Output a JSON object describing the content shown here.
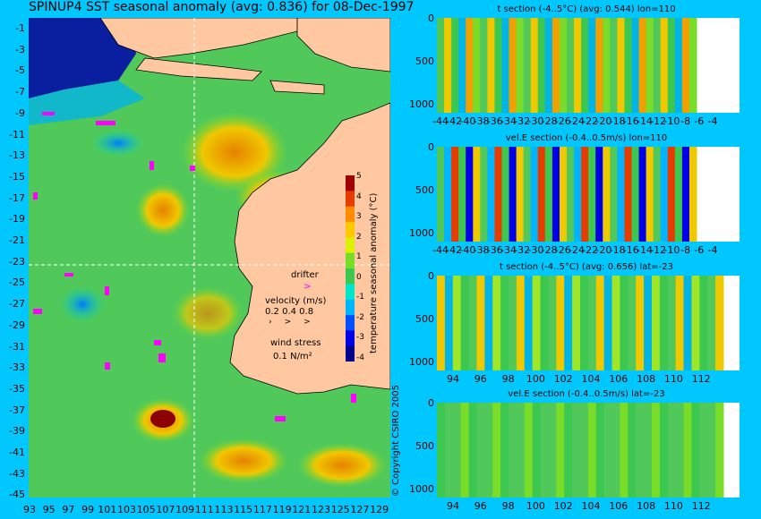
{
  "title": "SPINUP4 SST seasonal anomaly (avg: 0.836) for 08-Dec-1997",
  "map": {
    "y_ticks": [
      "-1",
      "-3",
      "-5",
      "-7",
      "-9",
      "-11",
      "-13",
      "-15",
      "-17",
      "-19",
      "-21",
      "-23",
      "-25",
      "-27",
      "-29",
      "-31",
      "-33",
      "-35",
      "-37",
      "-39",
      "-41",
      "-43",
      "-45"
    ],
    "x_ticks": [
      "93",
      "95",
      "97",
      "99",
      "101",
      "103",
      "105",
      "107",
      "109",
      "111",
      "113",
      "115",
      "117",
      "119",
      "121",
      "123",
      "125",
      "127",
      "129"
    ]
  },
  "colorbar": {
    "label": "temperature seasonal anomaly (°C)",
    "ticks": [
      "5",
      "4",
      "3",
      "2",
      "1",
      "0",
      "-1",
      "-2",
      "-3",
      "-4"
    ],
    "colors": [
      "#00008c",
      "#0000e6",
      "#0050ff",
      "#00b4ff",
      "#00e6c8",
      "#3cc850",
      "#78dc28",
      "#dcf000",
      "#ffc800",
      "#ff8c00",
      "#e63c00",
      "#a00000"
    ]
  },
  "legend": {
    "drifter": "drifter",
    "velocity_label": "velocity (m/s)",
    "velocity_values": "0.2 0.4 0.8",
    "wind_label": "wind stress",
    "wind_value": "0.1 N/m²"
  },
  "copyright": "© Copyright CSIRO 2005",
  "sections": [
    {
      "title": "t section (-4..5°C) (avg: 0.544) lon=110",
      "y_ticks": [
        "0",
        "500",
        "1000"
      ],
      "x_ticks": [
        "-44",
        "-42",
        "-40",
        "-38",
        "-36",
        "-34",
        "-32",
        "-30",
        "-28",
        "-26",
        "-24",
        "-22",
        "-20",
        "-18",
        "-16",
        "-14",
        "-12",
        "-10",
        "-8",
        "-6",
        "-4"
      ]
    },
    {
      "title": "vel.E section (-0.4..0.5m/s) lon=110",
      "y_ticks": [
        "0",
        "500",
        "1000"
      ],
      "x_ticks": [
        "-44",
        "-42",
        "-40",
        "-38",
        "-36",
        "-34",
        "-32",
        "-30",
        "-28",
        "-26",
        "-24",
        "-22",
        "-20",
        "-18",
        "-16",
        "-14",
        "-12",
        "-10",
        "-8",
        "-6",
        "-4"
      ]
    },
    {
      "title": "t section (-4..5°C) (avg: 0.656) lat=-23",
      "y_ticks": [
        "0",
        "500",
        "1000"
      ],
      "x_ticks": [
        "94",
        "96",
        "98",
        "100",
        "102",
        "104",
        "106",
        "108",
        "110",
        "112"
      ]
    },
    {
      "title": "vel.E section (-0.4..0.5m/s) lat=-23",
      "y_ticks": [
        "0",
        "500",
        "1000"
      ],
      "x_ticks": [
        "94",
        "96",
        "98",
        "100",
        "102",
        "104",
        "106",
        "108",
        "110",
        "112"
      ]
    }
  ],
  "chart_data": {
    "type": "heatmap",
    "title": "SPINUP4 SST seasonal anomaly (avg: 0.836) for 08-Dec-1997",
    "xlim": [
      93,
      130
    ],
    "ylim": [
      -45,
      0
    ],
    "colorbar_range": [
      -4,
      5
    ],
    "section_depth_range": [
      0,
      1000
    ]
  }
}
